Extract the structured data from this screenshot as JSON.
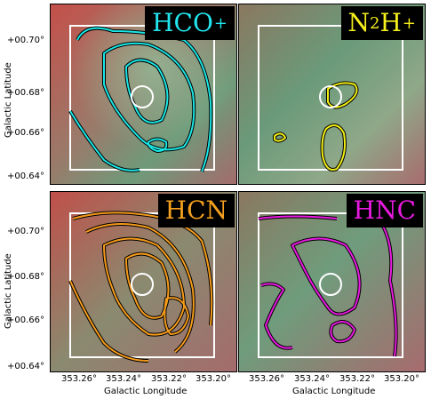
{
  "panels": [
    {
      "id": "hco",
      "molecule": "HCO",
      "superscript": "+",
      "subscript": "",
      "tail": "",
      "contour_color": "#19e6e6",
      "label_color": "#22e5ee"
    },
    {
      "id": "n2h",
      "molecule": "N",
      "subscript": "2",
      "tail": "H",
      "superscript": "+",
      "contour_color": "#f2ee12",
      "label_color": "#f5ef1c"
    },
    {
      "id": "hcn",
      "molecule": "HCN",
      "superscript": "",
      "subscript": "",
      "tail": "",
      "contour_color": "#f59b1a",
      "label_color": "#f5a01e"
    },
    {
      "id": "hnc",
      "molecule": "HNC",
      "superscript": "",
      "subscript": "",
      "tail": "",
      "contour_color": "#e81ae0",
      "label_color": "#e81ae0"
    }
  ],
  "axes": {
    "x_title": "Galactic Longitude",
    "y_title": "Galactic Latitude",
    "x_ticks": [
      "353.26°",
      "353.24°",
      "353.22°",
      "353.20°"
    ],
    "y_ticks": [
      "+00.70°",
      "+00.68°",
      "+00.66°",
      "+00.64°"
    ]
  }
}
